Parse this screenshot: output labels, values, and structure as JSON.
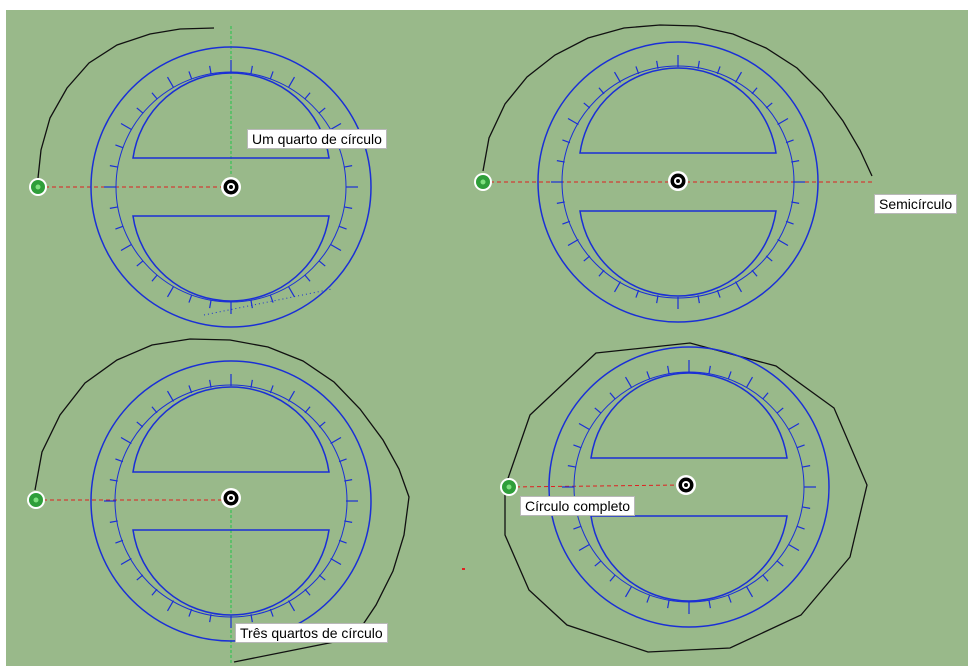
{
  "labels": {
    "quarter": "Um quarto de círculo",
    "semicircle": "Semicírculo",
    "three_quarters": "Três quartos de círculo",
    "full": "Círculo completo"
  },
  "colors": {
    "background": "#99b98a",
    "protractor": "#1a2fd6",
    "swept_path": "#111111",
    "axis_line": "#e02020",
    "green_axis": "#22c24a",
    "start_point": "#2f9e3a"
  },
  "icons": {
    "rotation_center": "target-circle-icon",
    "start_point": "green-point-icon"
  }
}
